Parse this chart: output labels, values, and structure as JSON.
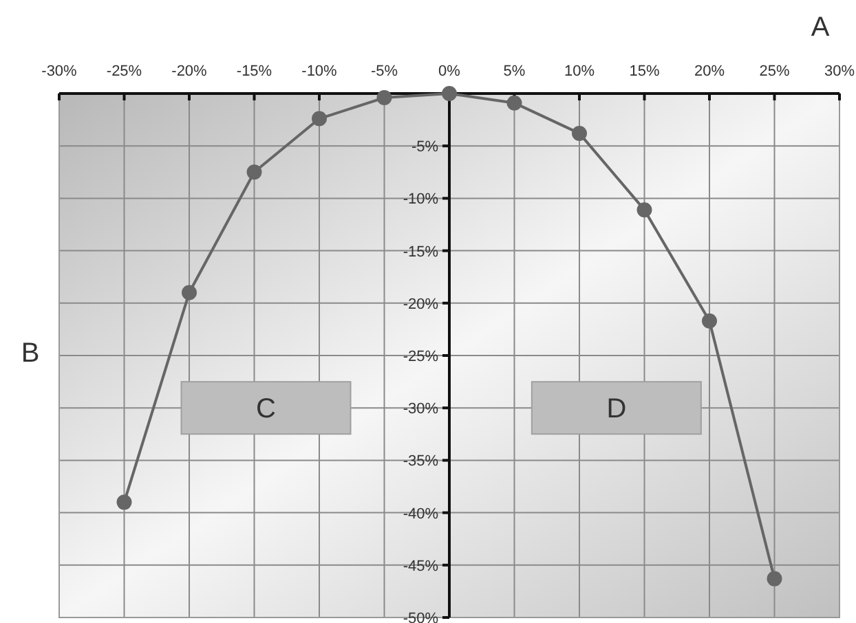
{
  "chart_data": {
    "type": "line",
    "xlabel": "A",
    "ylabel": "B",
    "x": [
      -25,
      -20,
      -15,
      -10,
      -5,
      0,
      5,
      10,
      15,
      20,
      25
    ],
    "series": [
      {
        "color": "#666666",
        "values": [
          -39,
          -19,
          -7.5,
          -2.4,
          -0.4,
          0,
          -0.9,
          -3.8,
          -11.1,
          -21.7,
          -46.3
        ]
      }
    ],
    "xlim": [
      -30,
      30
    ],
    "xticks": [
      {
        "value": -30,
        "label": "-30%"
      },
      {
        "value": -25,
        "label": "-25%"
      },
      {
        "value": -20,
        "label": "-20%"
      },
      {
        "value": -15,
        "label": "-15%"
      },
      {
        "value": -10,
        "label": "-10%"
      },
      {
        "value": -5,
        "label": "-5%"
      },
      {
        "value": 0,
        "label": "0%"
      },
      {
        "value": 5,
        "label": "5%"
      },
      {
        "value": 10,
        "label": "10%"
      },
      {
        "value": 15,
        "label": "15%"
      },
      {
        "value": 20,
        "label": "20%"
      },
      {
        "value": 25,
        "label": "25%"
      },
      {
        "value": 30,
        "label": "30%"
      }
    ],
    "ylim": [
      -50,
      0
    ],
    "yticks": [
      {
        "value": -5,
        "label": "-5%"
      },
      {
        "value": -10,
        "label": "-10%"
      },
      {
        "value": -15,
        "label": "-15%"
      },
      {
        "value": -20,
        "label": "-20%"
      },
      {
        "value": -25,
        "label": "-25%"
      },
      {
        "value": -30,
        "label": "-30%"
      },
      {
        "value": -35,
        "label": "-35%"
      },
      {
        "value": -40,
        "label": "-40%"
      },
      {
        "value": -45,
        "label": "-45%"
      },
      {
        "value": -50,
        "label": "-50%"
      }
    ],
    "annotations": [
      "C",
      "D"
    ],
    "grid": true,
    "marker": "circle",
    "line_style": "solid"
  }
}
